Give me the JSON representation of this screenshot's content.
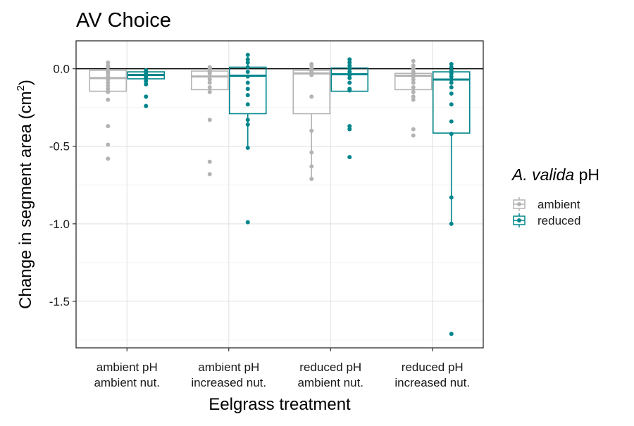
{
  "chart_data": {
    "type": "box",
    "title": "AV Choice",
    "xlabel": "Eelgrass treatment",
    "ylabel_prefix": "Change in segment area (cm",
    "ylabel_sup": "2",
    "ylabel_suffix": ")",
    "ylim": [
      -1.8,
      0.18
    ],
    "yticks": [
      0.0,
      -0.5,
      -1.0,
      -1.5
    ],
    "ytick_labels": [
      "0.0",
      "-0.5",
      "-1.0",
      "-1.5"
    ],
    "reference_line_y": 0,
    "grid": true,
    "legend": {
      "placement": "right",
      "title_italic": "A. valida",
      "title_rest": " pH",
      "entries": [
        "ambient",
        "reduced"
      ]
    },
    "categories": [
      {
        "line1": "ambient pH",
        "line2": "ambient nut."
      },
      {
        "line1": "ambient pH",
        "line2": "increased nut."
      },
      {
        "line1": "reduced pH",
        "line2": "ambient nut."
      },
      {
        "line1": "reduced pH",
        "line2": "increased nut."
      }
    ],
    "series": [
      {
        "name": "ambient",
        "color": "#b3b3b3",
        "boxes": [
          {
            "q1": -0.145,
            "median": -0.06,
            "q3": -0.01,
            "whisker_low": -0.145,
            "whisker_high": 0.0,
            "points": [
              0.04,
              0.02,
              0.01,
              -0.01,
              -0.02,
              -0.03,
              -0.05,
              -0.07,
              -0.09,
              -0.11,
              -0.13,
              -0.15,
              -0.2,
              -0.37,
              -0.49,
              -0.58
            ]
          },
          {
            "q1": -0.135,
            "median": -0.05,
            "q3": -0.015,
            "whisker_low": -0.135,
            "whisker_high": 0.0,
            "points": [
              0.01,
              0.0,
              -0.01,
              -0.02,
              -0.03,
              -0.05,
              -0.07,
              -0.09,
              -0.12,
              -0.15,
              -0.33,
              -0.6,
              -0.68
            ]
          },
          {
            "q1": -0.29,
            "median": -0.03,
            "q3": -0.01,
            "whisker_low": -0.71,
            "whisker_high": 0.03,
            "points": [
              0.03,
              0.02,
              0.0,
              -0.01,
              -0.02,
              -0.03,
              -0.04,
              -0.18,
              -0.4,
              -0.54,
              -0.63,
              -0.71
            ]
          },
          {
            "q1": -0.135,
            "median": -0.045,
            "q3": -0.03,
            "whisker_low": -0.2,
            "whisker_high": 0.05,
            "points": [
              0.05,
              0.02,
              0.0,
              -0.02,
              -0.03,
              -0.04,
              -0.05,
              -0.07,
              -0.09,
              -0.12,
              -0.15,
              -0.18,
              -0.2,
              -0.39,
              -0.43
            ]
          }
        ]
      },
      {
        "name": "reduced",
        "color": "#00868b",
        "boxes": [
          {
            "q1": -0.065,
            "median": -0.04,
            "q3": -0.02,
            "whisker_low": -0.065,
            "whisker_high": -0.005,
            "points": [
              -0.01,
              -0.02,
              -0.03,
              -0.04,
              -0.05,
              -0.06,
              -0.08,
              -0.1,
              -0.18,
              -0.24
            ]
          },
          {
            "q1": -0.29,
            "median": -0.045,
            "q3": 0.01,
            "whisker_low": -0.51,
            "whisker_high": 0.09,
            "points": [
              0.09,
              0.06,
              0.04,
              0.01,
              -0.02,
              -0.05,
              -0.09,
              -0.13,
              -0.17,
              -0.23,
              -0.33,
              -0.36,
              -0.51,
              -0.99
            ]
          },
          {
            "q1": -0.145,
            "median": -0.035,
            "q3": 0.005,
            "whisker_low": -0.145,
            "whisker_high": 0.06,
            "points": [
              0.06,
              0.04,
              0.02,
              0.0,
              -0.02,
              -0.04,
              -0.06,
              -0.09,
              -0.13,
              -0.14,
              -0.37,
              -0.39,
              -0.57
            ]
          },
          {
            "q1": -0.415,
            "median": -0.07,
            "q3": -0.02,
            "whisker_low": -1.0,
            "whisker_high": 0.03,
            "points": [
              0.03,
              0.01,
              -0.01,
              -0.03,
              -0.05,
              -0.07,
              -0.09,
              -0.12,
              -0.16,
              -0.23,
              -0.34,
              -0.42,
              -0.83,
              -1.0,
              -1.71
            ]
          }
        ]
      }
    ]
  }
}
